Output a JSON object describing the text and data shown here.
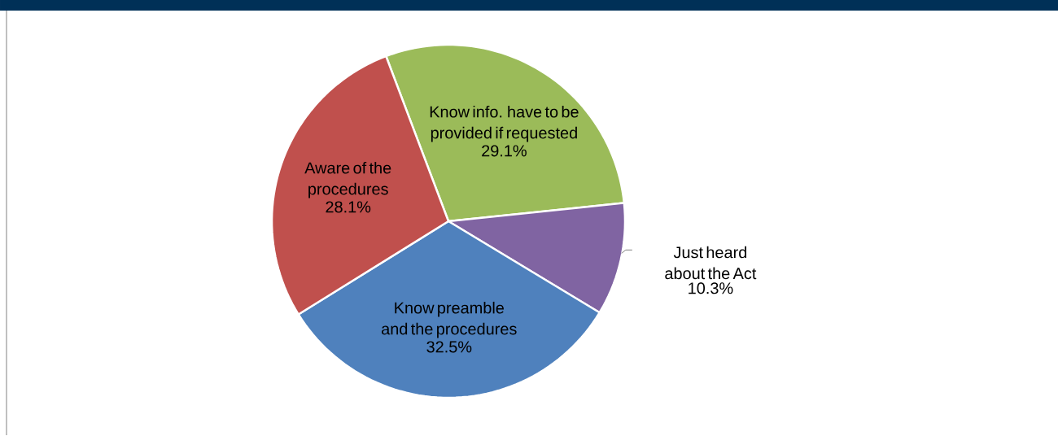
{
  "chart_data": {
    "type": "pie",
    "categories": [
      "Know info. have to be provided if requested",
      "Just heard about the Act",
      "Know preamble and the procedures",
      "Aware of the procedures"
    ],
    "values": [
      29.1,
      10.3,
      32.5,
      28.1
    ],
    "colors": [
      "#9bbb59",
      "#8064a2",
      "#4f81bd",
      "#c0504d"
    ],
    "value_labels": [
      "29.1%",
      "10.3%",
      "32.5%",
      "28.1%"
    ]
  }
}
